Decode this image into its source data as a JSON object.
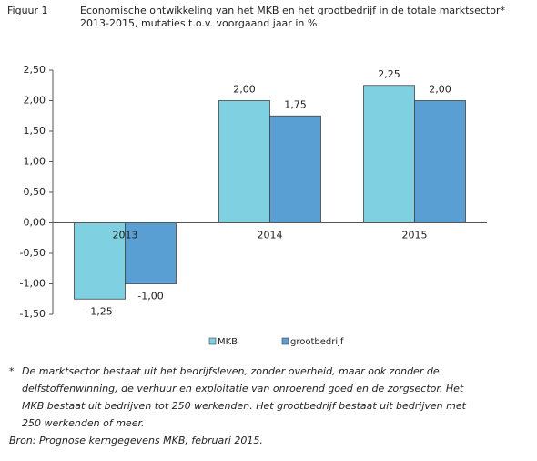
{
  "figure_label": "Figuur 1",
  "chart_data": {
    "type": "bar",
    "title": "Economische ontwikkeling van het MKB en het grootbedrijf in de totale marktsector*",
    "subtitle": "2013-2015, mutaties t.o.v. voorgaand jaar in %",
    "categories": [
      "2013",
      "2014",
      "2015"
    ],
    "series": [
      {
        "name": "MKB",
        "color": "#7fd0e0",
        "values": [
          -1.25,
          2.0,
          2.25
        ],
        "value_labels": [
          "-1,25",
          "2,00",
          "2,25"
        ]
      },
      {
        "name": "grootbedrijf",
        "color": "#5a9fd4",
        "values": [
          -1.0,
          1.75,
          2.0
        ],
        "value_labels": [
          "-1,00",
          "1,75",
          "2,00"
        ]
      }
    ],
    "ylim": [
      -1.5,
      2.5
    ],
    "yticks": [
      {
        "value": -1.5,
        "label": "-1,50"
      },
      {
        "value": -1.0,
        "label": "-1,00"
      },
      {
        "value": -0.5,
        "label": "-0,50"
      },
      {
        "value": 0,
        "label": "0,00"
      },
      {
        "value": 0.5,
        "label": "0,50"
      },
      {
        "value": 1.0,
        "label": "1,00"
      },
      {
        "value": 1.5,
        "label": "1,50"
      },
      {
        "value": 2.0,
        "label": "2,00"
      },
      {
        "value": 2.5,
        "label": "2,50"
      }
    ],
    "grid": false,
    "legend": "bottom"
  },
  "footnote_marker": "*",
  "footnote": [
    "De marktsector bestaat uit het bedrijfsleven, zonder overheid, maar ook zonder de",
    "delfstoffenwinning, de verhuur en exploitatie van onroerend goed en de zorgsector. Het",
    "MKB bestaat uit bedrijven tot 250 werkenden. Het grootbedrijf bestaat uit bedrijven met",
    "250 werkenden of meer."
  ],
  "source": "Bron: Prognose kerngegevens MKB, februari 2015."
}
